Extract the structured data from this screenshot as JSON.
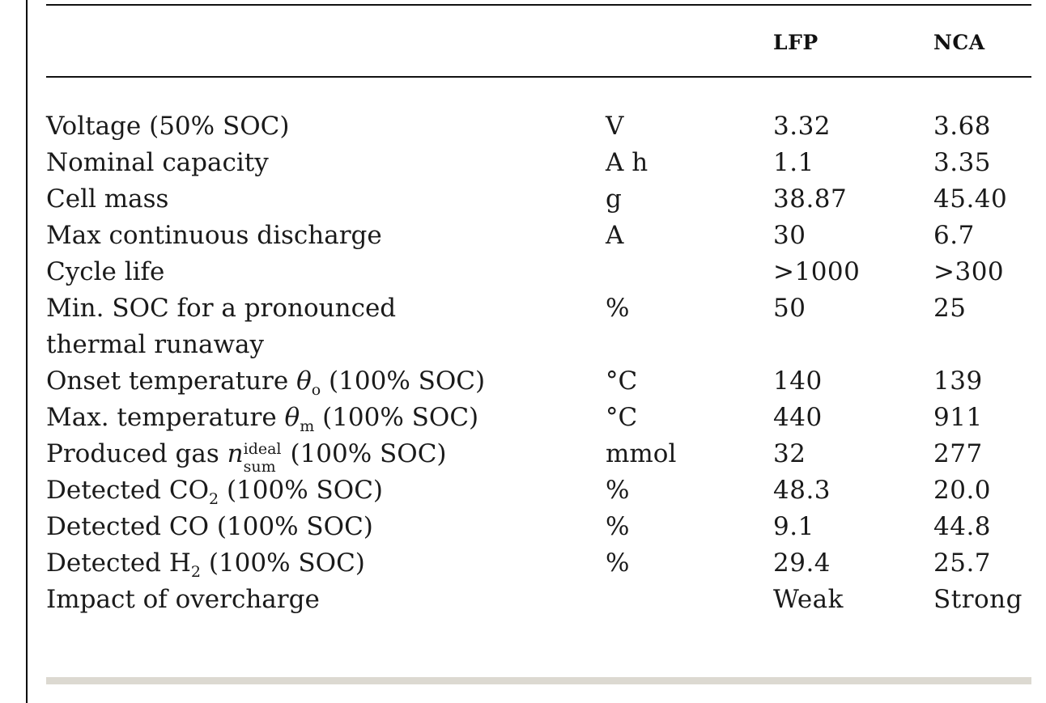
{
  "header": {
    "col_lfp": "LFP",
    "col_nca": "NCA"
  },
  "rows": [
    {
      "label": "Voltage (50% SOC)",
      "unit": "V",
      "lfp": "3.32",
      "nca": "3.68"
    },
    {
      "label": "Nominal capacity",
      "unit": "A h",
      "lfp": "1.1",
      "nca": "3.35"
    },
    {
      "label": "Cell mass",
      "unit": "g",
      "lfp": "38.87",
      "nca": "45.40"
    },
    {
      "label": "Max continuous discharge",
      "unit": "A",
      "lfp": "30",
      "nca": "6.7"
    },
    {
      "label": "Cycle life",
      "unit": "",
      "lfp": ">1000",
      "nca": ">300"
    },
    {
      "label": "Min. SOC for a pronounced",
      "unit": "%",
      "lfp": "50",
      "nca": "25"
    },
    {
      "label": "thermal runaway",
      "unit": "",
      "lfp": "",
      "nca": ""
    },
    {
      "label_pre": "Onset temperature ",
      "symbol": "θ",
      "sub": "o",
      "label_post": " (100% SOC)",
      "unit": "°C",
      "lfp": "140",
      "nca": "139"
    },
    {
      "label_pre": "Max. temperature ",
      "symbol": "θ",
      "sub": "m",
      "label_post": " (100% SOC)",
      "unit": "°C",
      "lfp": "440",
      "nca": "911"
    },
    {
      "label_pre": "Produced gas ",
      "symbol": "n",
      "sup": "ideal",
      "sub": "sum",
      "label_post": " (100% SOC)",
      "unit": "mmol",
      "lfp": "32",
      "nca": "277"
    },
    {
      "label_pre": "Detected CO",
      "sub": "2",
      "label_post": " (100% SOC)",
      "unit": "%",
      "lfp": "48.3",
      "nca": "20.0"
    },
    {
      "label": "Detected CO (100% SOC)",
      "unit": "%",
      "lfp": "9.1",
      "nca": "44.8"
    },
    {
      "label_pre": "Detected H",
      "sub": "2",
      "label_post": " (100% SOC)",
      "unit": "%",
      "lfp": "29.4",
      "nca": "25.7"
    },
    {
      "label": "Impact of overcharge",
      "unit": "",
      "lfp": "Weak",
      "nca": "Strong"
    }
  ]
}
